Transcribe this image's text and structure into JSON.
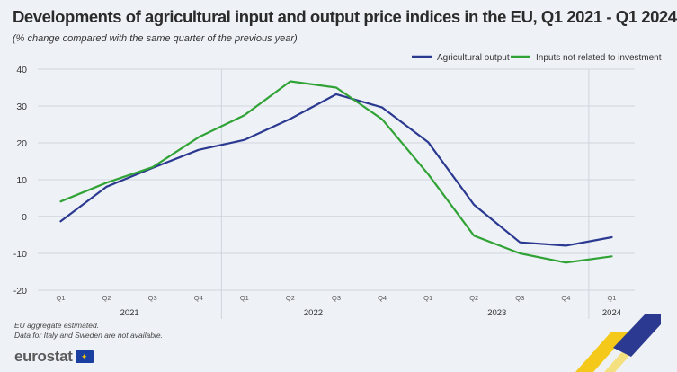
{
  "title": "Developments of agricultural input and output price indices in the EU, Q1 2021 - Q1 2024",
  "subtitle": "(% change compared with the same quarter of the previous year)",
  "footnotes": [
    "EU aggregate estimated.",
    "Data for Italy and Sweden are not available."
  ],
  "logo_text": "eurostat",
  "colors": {
    "agricultural_output": "#2b3990",
    "inputs_not_related": "#31a336",
    "grid": "#c9ced6",
    "axis_text": "#333333"
  },
  "chart_data": {
    "type": "line",
    "title": "Developments of agricultural input and output price indices in the EU, Q1 2021 - Q1 2024",
    "xlabel": "",
    "ylabel": "",
    "ylim": [
      -20,
      40
    ],
    "yticks": [
      -20,
      -10,
      0,
      10,
      20,
      30,
      40
    ],
    "categories": [
      "Q1",
      "Q2",
      "Q3",
      "Q4",
      "Q1",
      "Q2",
      "Q3",
      "Q4",
      "Q1",
      "Q2",
      "Q3",
      "Q4",
      "Q1"
    ],
    "years": [
      {
        "label": "2021",
        "start": 0,
        "end": 3
      },
      {
        "label": "2022",
        "start": 4,
        "end": 7
      },
      {
        "label": "2023",
        "start": 8,
        "end": 11
      },
      {
        "label": "2024",
        "start": 12,
        "end": 12
      }
    ],
    "legend_position": "top-right",
    "series": [
      {
        "name": "Agricultural output",
        "color_key": "agricultural_output",
        "values": [
          -1.3,
          8.1,
          13.2,
          18.1,
          20.8,
          26.5,
          33.2,
          29.6,
          20.2,
          3.2,
          -7.0,
          -7.9,
          -5.6
        ]
      },
      {
        "name": "Inputs not related to investment",
        "color_key": "inputs_not_related",
        "values": [
          4.1,
          9.2,
          13.4,
          21.5,
          27.5,
          36.7,
          35.0,
          26.4,
          11.5,
          -5.2,
          -10.0,
          -12.5,
          -10.8
        ]
      }
    ]
  }
}
